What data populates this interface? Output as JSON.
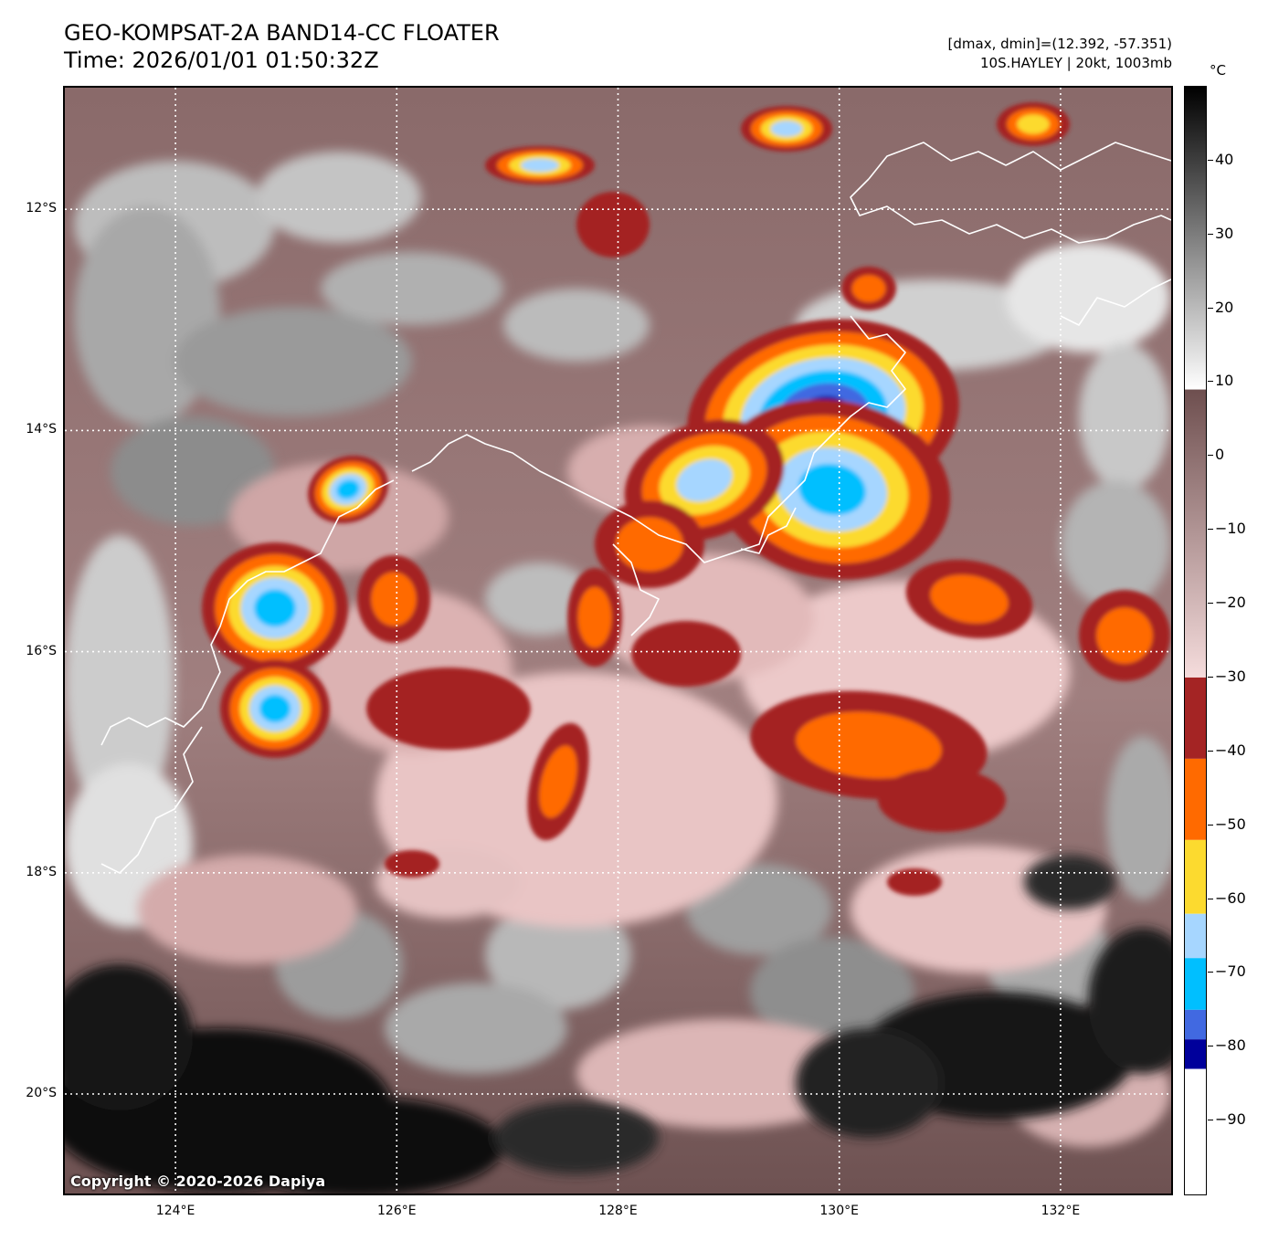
{
  "title_line1": "GEO-KOMPSAT-2A BAND14-CC FLOATER",
  "title_line2": "Time: 2026/01/01 01:50:32Z",
  "meta_line1": "[dmax, dmin]=(12.392, -57.351)",
  "meta_line2": "10S.HAYLEY | 20kt, 1003mb",
  "copyright": "Copyright © 2020-2026 Dapiya",
  "map": {
    "lat_labels": [
      "12°S",
      "14°S",
      "16°S",
      "18°S",
      "20°S"
    ],
    "lon_labels": [
      "124°E",
      "126°E",
      "128°E",
      "130°E",
      "132°E"
    ],
    "lat_values": [
      -12,
      -14,
      -16,
      -18,
      -20
    ],
    "lon_values": [
      124,
      126,
      128,
      130,
      132
    ],
    "lon_range": [
      123.0,
      133.0
    ],
    "lat_range": [
      -10.9,
      -20.9
    ],
    "gridlines": true,
    "grid_color": "#ffffff",
    "coastline_color": "#ffffff"
  },
  "colorbar": {
    "unit": "°C",
    "range": [
      -100,
      50
    ],
    "ticks": [
      40,
      30,
      20,
      10,
      0,
      -10,
      -20,
      -30,
      -40,
      -50,
      -60,
      -70,
      -80,
      -90
    ],
    "tick_labels": [
      "40",
      "30",
      "20",
      "10",
      "0",
      "−10",
      "−20",
      "−30",
      "−40",
      "−50",
      "−60",
      "−70",
      "−80",
      "−90"
    ],
    "segments": [
      {
        "from": 50,
        "to": 9,
        "colors": [
          "#000000",
          "#ffffff"
        ]
      },
      {
        "from": 9,
        "to": -30,
        "colors": [
          "#6e4f4f",
          "#f5dcdc"
        ]
      },
      {
        "from": -30,
        "to": -41,
        "colors": [
          "#a42424",
          "#a42424"
        ]
      },
      {
        "from": -41,
        "to": -52,
        "colors": [
          "#ff6a00",
          "#ff6a00"
        ]
      },
      {
        "from": -52,
        "to": -62,
        "colors": [
          "#fcda2f",
          "#fcda2f"
        ]
      },
      {
        "from": -62,
        "to": -68,
        "colors": [
          "#a6d6ff",
          "#a6d6ff"
        ]
      },
      {
        "from": -68,
        "to": -75,
        "colors": [
          "#00bfff",
          "#00bfff"
        ]
      },
      {
        "from": -75,
        "to": -79,
        "colors": [
          "#4169e1",
          "#4169e1"
        ]
      },
      {
        "from": -79,
        "to": -83,
        "colors": [
          "#00009b",
          "#00009b"
        ]
      },
      {
        "from": -83,
        "to": -100,
        "colors": [
          "#ffffff",
          "#ffffff"
        ]
      }
    ]
  }
}
